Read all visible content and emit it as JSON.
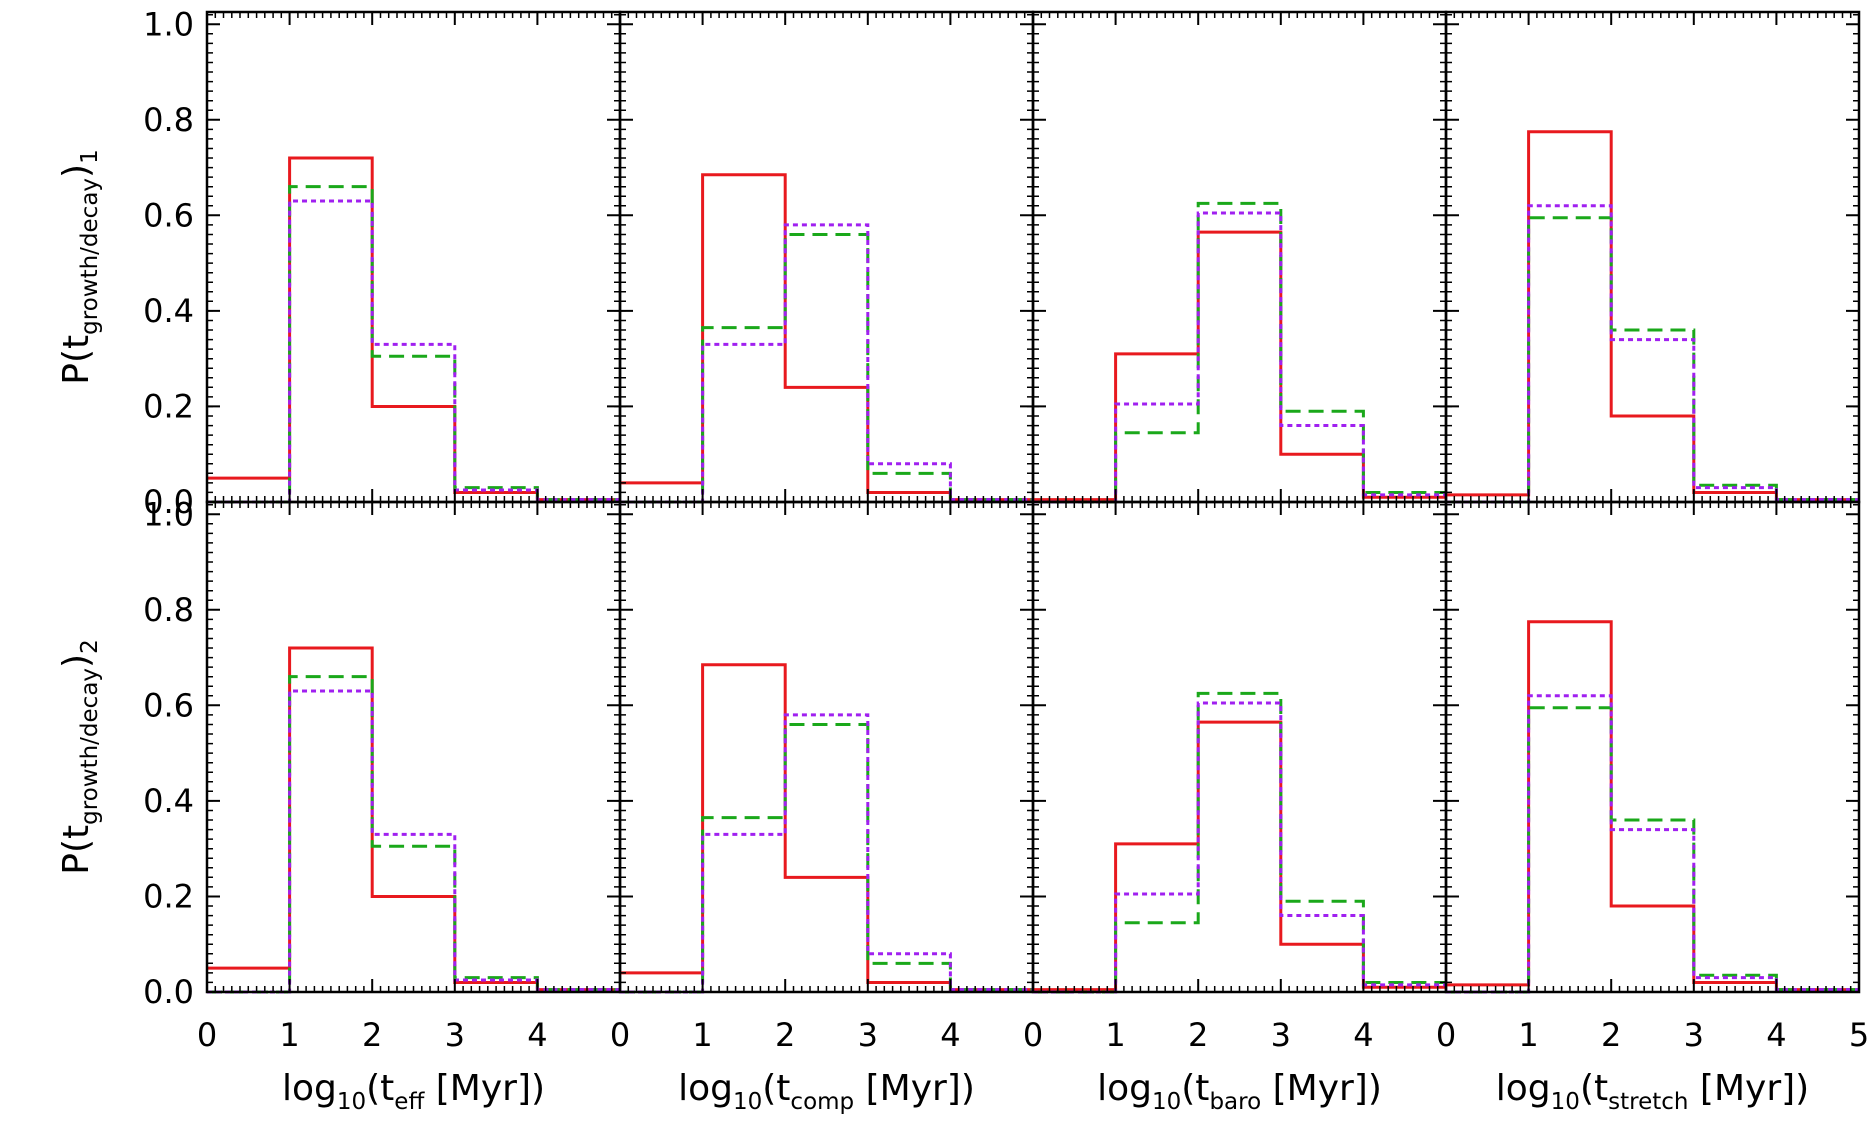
{
  "chart_data": {
    "type": "step-histogram",
    "layout": "2 rows x 4 columns, shared axes",
    "x_range": [
      0,
      5
    ],
    "y_range": [
      0,
      1.0
    ],
    "x_ticks": [
      "0",
      "1",
      "2",
      "3",
      "4"
    ],
    "x_ticks_last": [
      "0",
      "1",
      "2",
      "3",
      "4",
      "5"
    ],
    "y_ticks": [
      "0.0",
      "0.2",
      "0.4",
      "0.6",
      "0.8",
      "1.0"
    ],
    "bin_edges": [
      0,
      1,
      2,
      3,
      4,
      5
    ],
    "series_styles": [
      {
        "name": "solid",
        "color": "#e8191e",
        "dash": ""
      },
      {
        "name": "dashed",
        "color": "#1aa81a",
        "dash": "15,8"
      },
      {
        "name": "dotted",
        "color": "#a020f0",
        "dash": "5,4"
      }
    ],
    "row_labels": [
      {
        "prefix": "P(t",
        "sub": "growth/decay",
        "close": ")",
        "sub2": "1"
      },
      {
        "prefix": "P(t",
        "sub": "growth/decay",
        "close": ")",
        "sub2": "2"
      }
    ],
    "column_xlabels": [
      {
        "prefix": "log",
        "sub": "10",
        "mid": "(t",
        "sub2": "eff",
        "suffix": " [Myr])"
      },
      {
        "prefix": "log",
        "sub": "10",
        "mid": "(t",
        "sub2": "comp",
        "suffix": " [Myr])"
      },
      {
        "prefix": "log",
        "sub": "10",
        "mid": "(t",
        "sub2": "baro",
        "suffix": " [Myr])"
      },
      {
        "prefix": "log",
        "sub": "10",
        "mid": "(t",
        "sub2": "stretch",
        "suffix": " [Myr])"
      }
    ],
    "panels": [
      {
        "id": "row1-teff",
        "series": [
          {
            "name": "solid",
            "values": [
              0.05,
              0.72,
              0.2,
              0.02,
              0.005
            ]
          },
          {
            "name": "dashed",
            "values": [
              0.0,
              0.66,
              0.305,
              0.03,
              0.005
            ]
          },
          {
            "name": "dotted",
            "values": [
              0.0,
              0.63,
              0.33,
              0.025,
              0.005
            ]
          }
        ]
      },
      {
        "id": "row1-tcomp",
        "series": [
          {
            "name": "solid",
            "values": [
              0.04,
              0.685,
              0.24,
              0.02,
              0.005
            ]
          },
          {
            "name": "dashed",
            "values": [
              0.0,
              0.365,
              0.56,
              0.06,
              0.005
            ]
          },
          {
            "name": "dotted",
            "values": [
              0.0,
              0.33,
              0.58,
              0.08,
              0.005
            ]
          }
        ]
      },
      {
        "id": "row1-tbaro",
        "series": [
          {
            "name": "solid",
            "values": [
              0.005,
              0.31,
              0.565,
              0.1,
              0.01
            ]
          },
          {
            "name": "dashed",
            "values": [
              0.0,
              0.145,
              0.625,
              0.19,
              0.02
            ]
          },
          {
            "name": "dotted",
            "values": [
              0.0,
              0.205,
              0.605,
              0.16,
              0.015
            ]
          }
        ]
      },
      {
        "id": "row1-tstretch",
        "series": [
          {
            "name": "solid",
            "values": [
              0.015,
              0.775,
              0.18,
              0.02,
              0.005
            ]
          },
          {
            "name": "dashed",
            "values": [
              0.0,
              0.595,
              0.36,
              0.035,
              0.005
            ]
          },
          {
            "name": "dotted",
            "values": [
              0.0,
              0.62,
              0.34,
              0.03,
              0.005
            ]
          }
        ]
      },
      {
        "id": "row2-teff",
        "series": [
          {
            "name": "solid",
            "values": [
              0.05,
              0.72,
              0.2,
              0.02,
              0.005
            ]
          },
          {
            "name": "dashed",
            "values": [
              0.0,
              0.66,
              0.305,
              0.03,
              0.005
            ]
          },
          {
            "name": "dotted",
            "values": [
              0.0,
              0.63,
              0.33,
              0.025,
              0.005
            ]
          }
        ]
      },
      {
        "id": "row2-tcomp",
        "series": [
          {
            "name": "solid",
            "values": [
              0.04,
              0.685,
              0.24,
              0.02,
              0.005
            ]
          },
          {
            "name": "dashed",
            "values": [
              0.0,
              0.365,
              0.56,
              0.06,
              0.005
            ]
          },
          {
            "name": "dotted",
            "values": [
              0.0,
              0.33,
              0.58,
              0.08,
              0.005
            ]
          }
        ]
      },
      {
        "id": "row2-tbaro",
        "series": [
          {
            "name": "solid",
            "values": [
              0.005,
              0.31,
              0.565,
              0.1,
              0.01
            ]
          },
          {
            "name": "dashed",
            "values": [
              0.0,
              0.145,
              0.625,
              0.19,
              0.02
            ]
          },
          {
            "name": "dotted",
            "values": [
              0.0,
              0.205,
              0.605,
              0.16,
              0.015
            ]
          }
        ]
      },
      {
        "id": "row2-tstretch",
        "series": [
          {
            "name": "solid",
            "values": [
              0.015,
              0.775,
              0.18,
              0.02,
              0.005
            ]
          },
          {
            "name": "dashed",
            "values": [
              0.0,
              0.595,
              0.36,
              0.035,
              0.005
            ]
          },
          {
            "name": "dotted",
            "values": [
              0.0,
              0.62,
              0.34,
              0.03,
              0.005
            ]
          }
        ]
      }
    ]
  }
}
